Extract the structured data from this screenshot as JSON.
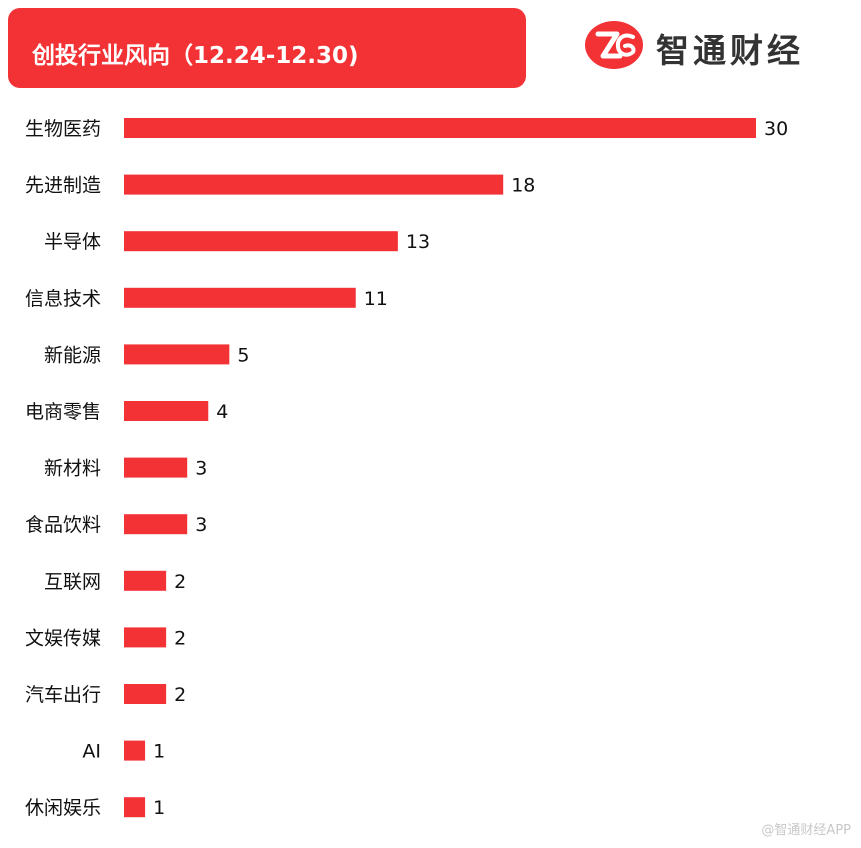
{
  "header": {
    "title": "创投行业风向（12.24-12.30)",
    "logo_text": "智通财经",
    "logo_icon": "zhitong-logo-icon"
  },
  "watermark": "@智通财经APP",
  "colors": {
    "accent": "#f33236",
    "text": "#111111",
    "logo_text": "#333333"
  },
  "chart_data": {
    "type": "bar",
    "orientation": "horizontal",
    "title": "创投行业风向（12.24-12.30)",
    "xlabel": "",
    "ylabel": "",
    "grid": false,
    "legend": "none",
    "xlim": [
      0,
      30
    ],
    "categories": [
      "生物医药",
      "先进制造",
      "半导体",
      "信息技术",
      "新能源",
      "电商零售",
      "新材料",
      "食品饮料",
      "互联网",
      "文娱传媒",
      "汽车出行",
      "AI",
      "休闲娱乐"
    ],
    "values": [
      30,
      18,
      13,
      11,
      5,
      4,
      3,
      3,
      2,
      2,
      2,
      1,
      1
    ]
  }
}
